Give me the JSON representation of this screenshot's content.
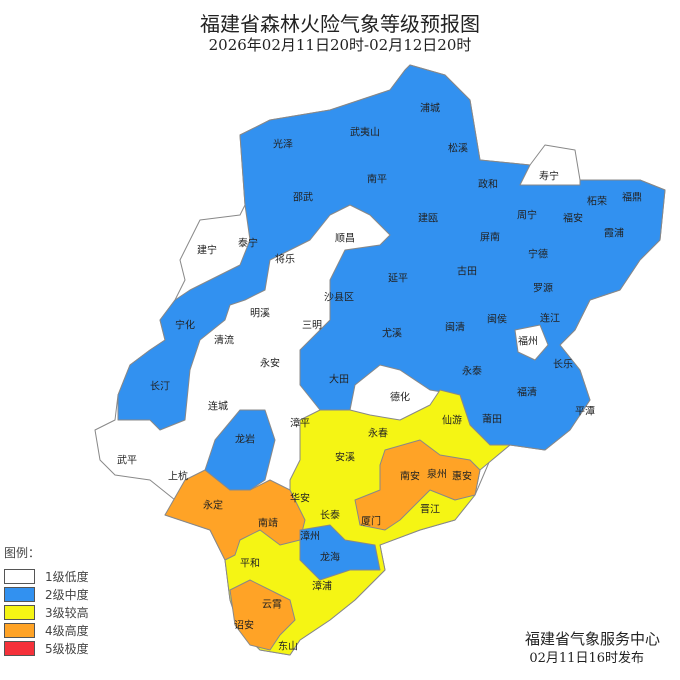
{
  "title": "福建省森林火险气象等级预报图",
  "subtitle": "2026年02月11日20时-02月12日20时",
  "legend": {
    "title": "图例：",
    "items": [
      {
        "label": "1级低度",
        "color": "#ffffff"
      },
      {
        "label": "2级中度",
        "color": "#3291f0"
      },
      {
        "label": "3级较高",
        "color": "#f5f514"
      },
      {
        "label": "4级高度",
        "color": "#ffa326"
      },
      {
        "label": "5级极度",
        "color": "#f5313a"
      }
    ]
  },
  "footer": {
    "issuer": "福建省气象服务中心",
    "issued": "02月11日16时发布"
  },
  "regions": [
    {
      "name": "浦城",
      "level": 2
    },
    {
      "name": "武夷山",
      "level": 2
    },
    {
      "name": "松溪",
      "level": 2
    },
    {
      "name": "光泽",
      "level": 2
    },
    {
      "name": "南平",
      "level": 2
    },
    {
      "name": "政和",
      "level": 2
    },
    {
      "name": "寿宁",
      "level": 1
    },
    {
      "name": "柘荣",
      "level": 2
    },
    {
      "name": "福鼎",
      "level": 2
    },
    {
      "name": "邵武",
      "level": 2
    },
    {
      "name": "周宁",
      "level": 2
    },
    {
      "name": "福安",
      "level": 2
    },
    {
      "name": "霞浦",
      "level": 2
    },
    {
      "name": "建瓯",
      "level": 2
    },
    {
      "name": "顺昌",
      "level": 1
    },
    {
      "name": "建宁",
      "level": 1
    },
    {
      "name": "泰宁",
      "level": 1
    },
    {
      "name": "将乐",
      "level": 2
    },
    {
      "name": "屏南",
      "level": 2
    },
    {
      "name": "宁德",
      "level": 2
    },
    {
      "name": "古田",
      "level": 2
    },
    {
      "name": "延平",
      "level": 2
    },
    {
      "name": "罗源",
      "level": 2
    },
    {
      "name": "沙县区",
      "level": 2
    },
    {
      "name": "明溪",
      "level": 1
    },
    {
      "name": "宁化",
      "level": 2
    },
    {
      "name": "三明",
      "level": 1
    },
    {
      "name": "连江",
      "level": 2
    },
    {
      "name": "闽侯",
      "level": 2
    },
    {
      "name": "闽清",
      "level": 2
    },
    {
      "name": "尤溪",
      "level": 2
    },
    {
      "name": "清流",
      "level": 1
    },
    {
      "name": "福州",
      "level": 1
    },
    {
      "name": "长乐",
      "level": 2
    },
    {
      "name": "永安",
      "level": 1
    },
    {
      "name": "大田",
      "level": 2
    },
    {
      "name": "永泰",
      "level": 2
    },
    {
      "name": "长汀",
      "level": 2
    },
    {
      "name": "德化",
      "level": 1
    },
    {
      "name": "连城",
      "level": 1
    },
    {
      "name": "福清",
      "level": 2
    },
    {
      "name": "平潭",
      "level": 2
    },
    {
      "name": "仙游",
      "level": 3
    },
    {
      "name": "漳平",
      "level": 1
    },
    {
      "name": "莆田",
      "level": 2
    },
    {
      "name": "永春",
      "level": 3
    },
    {
      "name": "龙岩",
      "level": 2
    },
    {
      "name": "武平",
      "level": 1
    },
    {
      "name": "安溪",
      "level": 3
    },
    {
      "name": "上杭",
      "level": 1
    },
    {
      "name": "南安",
      "level": 4
    },
    {
      "name": "泉州",
      "level": 3
    },
    {
      "name": "惠安",
      "level": 4
    },
    {
      "name": "永定",
      "level": 4
    },
    {
      "name": "华安",
      "level": 3
    },
    {
      "name": "长泰",
      "level": 3
    },
    {
      "name": "厦门",
      "level": 4
    },
    {
      "name": "晋江",
      "level": 3
    },
    {
      "name": "南靖",
      "level": 4
    },
    {
      "name": "漳州",
      "level": 2
    },
    {
      "name": "龙海",
      "level": 2
    },
    {
      "name": "平和",
      "level": 3
    },
    {
      "name": "漳浦",
      "level": 3
    },
    {
      "name": "云霄",
      "level": 4
    },
    {
      "name": "诏安",
      "level": 4
    },
    {
      "name": "东山",
      "level": 3
    }
  ]
}
